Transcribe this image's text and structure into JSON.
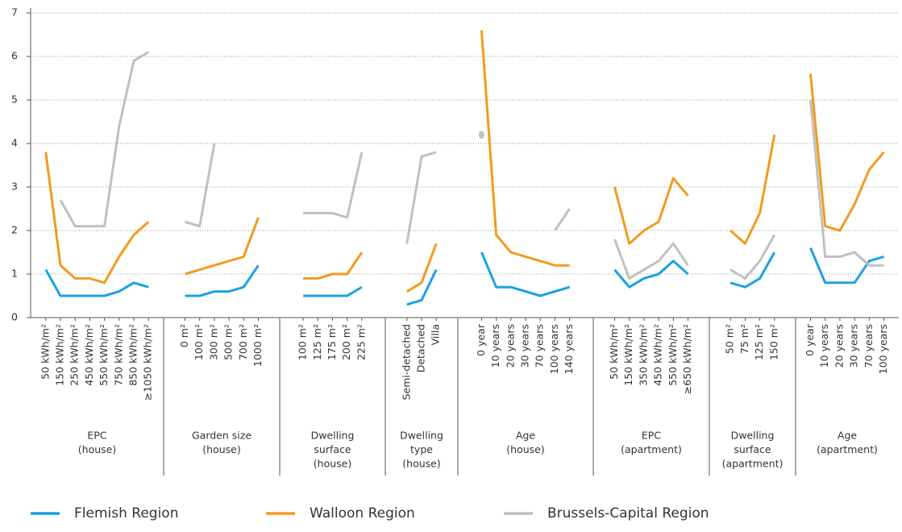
{
  "chart_data": {
    "type": "line",
    "ylim": [
      0,
      7
    ],
    "yticks": [
      0,
      1,
      2,
      3,
      4,
      5,
      6,
      7
    ],
    "grid": true,
    "groups": [
      {
        "label": [
          "EPC",
          "(house)"
        ],
        "categories": [
          "50 kWh/m²",
          "150 kWh/m²",
          "250 kWh/m²",
          "450 kWh/m²",
          "550 kWh/m²",
          "750 kWh/m²",
          "850 kWh/m²",
          "≥1050 kWh/m²"
        ]
      },
      {
        "label": [
          "Garden size",
          "(house)"
        ],
        "categories": [
          "0 m²",
          "100 m²",
          "300 m²",
          "500 m²",
          "700 m²",
          "1000 m²"
        ]
      },
      {
        "label": [
          "Dwelling",
          "surface",
          "(house)"
        ],
        "categories": [
          "100 m²",
          "125 m²",
          "175 m²",
          "200 m²",
          "225 m²"
        ]
      },
      {
        "label": [
          "Dwelling",
          "type",
          "(house)"
        ],
        "categories": [
          "Semi-detached",
          "Detached",
          "Villa"
        ]
      },
      {
        "label": [
          "Age",
          "(house)"
        ],
        "categories": [
          "0 year",
          "10 years",
          "20 years",
          "30 years",
          "70 years",
          "100 years",
          "140 years"
        ]
      },
      {
        "label": [
          "EPC",
          "(apartment)"
        ],
        "categories": [
          "50 kWh/m²",
          "150 kWh/m²",
          "350 kWh/m²",
          "450 kWh/m²",
          "550 kWh/m²",
          "≥650 kWh/m²"
        ]
      },
      {
        "label": [
          "Dwelling",
          "surface",
          "(apartment)"
        ],
        "categories": [
          "50 m²",
          "75 m²",
          "125 m²",
          "150 m²"
        ]
      },
      {
        "label": [
          "Age",
          "(apartment)"
        ],
        "categories": [
          "0 year",
          "10 years",
          "20 years",
          "30 years",
          "70 years",
          "100 years"
        ]
      }
    ],
    "series": [
      {
        "name": "Flemish Region",
        "color": "#1ba1e2",
        "values": [
          [
            1.1,
            0.5,
            0.5,
            0.5,
            0.5,
            0.6,
            0.8,
            0.7
          ],
          [
            0.5,
            0.5,
            0.6,
            0.6,
            0.7,
            1.2
          ],
          [
            0.5,
            0.5,
            0.5,
            0.5,
            0.7
          ],
          [
            0.3,
            0.4,
            1.1
          ],
          [
            1.5,
            0.7,
            0.7,
            0.6,
            0.5,
            0.6,
            0.7
          ],
          [
            1.1,
            0.7,
            0.9,
            1.0,
            1.3,
            1.0
          ],
          [
            0.8,
            0.7,
            0.9,
            1.5
          ],
          [
            1.6,
            0.8,
            0.8,
            0.8,
            1.3,
            1.4
          ]
        ]
      },
      {
        "name": "Walloon Region",
        "color": "#f39a1e",
        "values": [
          [
            3.8,
            1.2,
            0.9,
            0.9,
            0.8,
            1.4,
            1.9,
            2.2
          ],
          [
            1.0,
            1.1,
            1.2,
            1.3,
            1.4,
            2.3
          ],
          [
            0.9,
            0.9,
            1.0,
            1.0,
            1.5
          ],
          [
            0.6,
            0.8,
            1.7
          ],
          [
            6.6,
            1.9,
            1.5,
            1.4,
            1.3,
            1.2,
            1.2
          ],
          [
            3.0,
            1.7,
            2.0,
            2.2,
            3.2,
            2.8
          ],
          [
            2.0,
            1.7,
            2.4,
            4.2
          ],
          [
            5.6,
            2.1,
            2.0,
            2.6,
            3.4,
            3.8
          ]
        ]
      },
      {
        "name": "Brussels-Capital Region",
        "color": "#c0c0c0",
        "values": [
          [
            null,
            2.7,
            2.1,
            2.1,
            2.1,
            4.4,
            5.9,
            6.1
          ],
          [
            2.2,
            2.1,
            4.0,
            null,
            null,
            null
          ],
          [
            2.4,
            2.4,
            2.4,
            2.3,
            3.8
          ],
          [
            1.7,
            3.7,
            3.8
          ],
          [
            4.2,
            null,
            null,
            null,
            null,
            2.0,
            2.5
          ],
          [
            1.8,
            0.9,
            1.1,
            1.3,
            1.7,
            1.2
          ],
          [
            1.1,
            0.9,
            1.3,
            1.9
          ],
          [
            5.0,
            1.4,
            1.4,
            1.5,
            1.2,
            1.2
          ]
        ]
      }
    ]
  }
}
